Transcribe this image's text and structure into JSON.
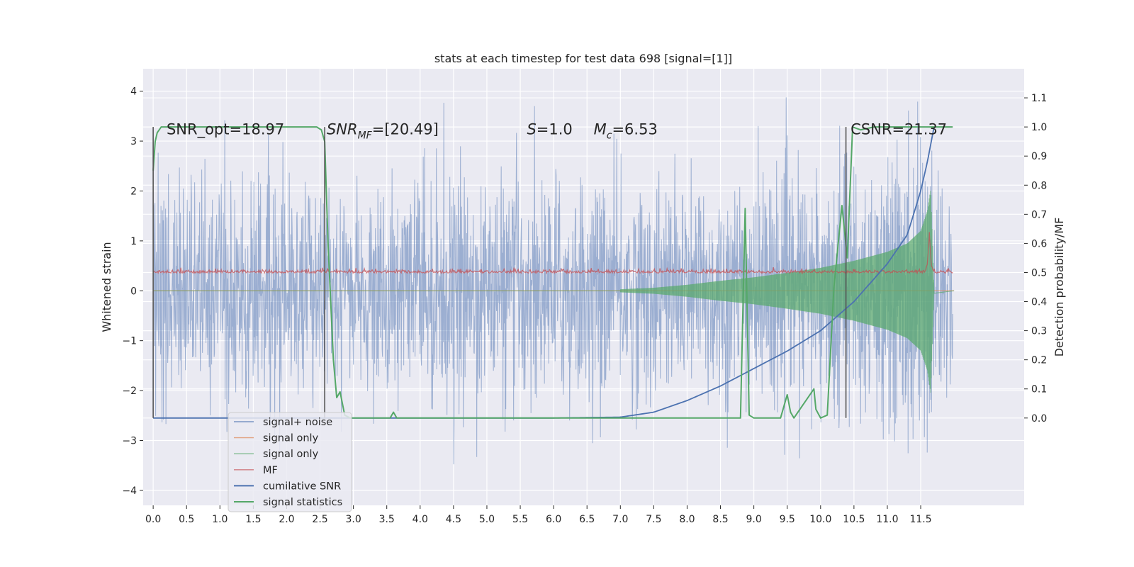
{
  "chart_data": {
    "type": "line",
    "title": "stats at each timestep for test data 698 [signal=[1]]",
    "ylabel": "Whitened strain",
    "ylabel_right": "Detection probability/MF",
    "xlim": [
      -0.15,
      13.05
    ],
    "ylim": [
      -4.3,
      4.45
    ],
    "ylim_right": [
      -0.3,
      1.2
    ],
    "x_ticks": [
      0.0,
      0.5,
      1.0,
      1.5,
      2.0,
      2.5,
      3.0,
      3.5,
      4.0,
      4.5,
      5.0,
      5.5,
      6.0,
      6.5,
      7.0,
      7.5,
      8.0,
      8.5,
      9.0,
      9.5,
      10.0,
      10.5,
      11.0,
      11.5
    ],
    "x_tick_labels": [
      "0.0",
      "0.5",
      "1.0",
      "1.5",
      "2.0",
      "2.5",
      "3.0",
      "3.5",
      "4.0",
      "4.5",
      "5.0",
      "5.5",
      "6.0",
      "6.5",
      "7.0",
      "7.5",
      "8.0",
      "8.5",
      "9.0",
      "9.5",
      "10.0",
      "10.5",
      "11.0",
      "11.5"
    ],
    "y_ticks": [
      -4,
      -3,
      -2,
      -1,
      0,
      1,
      2,
      3,
      4
    ],
    "y_tick_labels": [
      "−4",
      "−3",
      "−2",
      "−1",
      "0",
      "1",
      "2",
      "3",
      "4"
    ],
    "y_right_ticks": [
      0.0,
      0.1,
      0.2,
      0.3,
      0.4,
      0.5,
      0.6,
      0.7,
      0.8,
      0.9,
      1.0,
      1.1
    ],
    "y_right_tick_labels": [
      "0.0",
      "0.1",
      "0.2",
      "0.3",
      "0.4",
      "0.5",
      "0.6",
      "0.7",
      "0.8",
      "0.9",
      "1.0",
      "1.1"
    ],
    "grid": true,
    "annotations": [
      {
        "text": "SNR_opt=18.97",
        "x": 0.2,
        "y": 0.98
      },
      {
        "text": "SNR_MF=[20.49]",
        "x": 2.6,
        "y": 0.98
      },
      {
        "text": "S=1.0",
        "x": 5.6,
        "y": 0.98
      },
      {
        "text": "M_c=6.53",
        "x": 6.6,
        "y": 0.98
      },
      {
        "text": "CSNR=21.37",
        "x": 10.45,
        "y": 0.98
      }
    ],
    "vertical_lines": [
      0.0,
      2.57,
      10.38
    ],
    "series": [
      {
        "name": "signal+ noise",
        "color": "#4c72b0",
        "axis": "left",
        "style": "noise",
        "x_range": [
          0.0,
          11.98
        ],
        "band_sigma": 1.35,
        "approx_max": 4.1,
        "approx_min": -3.9
      },
      {
        "name": "signal only",
        "color": "#dd8452",
        "axis": "left",
        "x": [
          0.0,
          12.0
        ],
        "y": [
          0.0,
          0.0
        ]
      },
      {
        "name": "signal only",
        "color": "#55a868",
        "axis": "left",
        "style": "chirp",
        "x": [
          7.0,
          7.5,
          8.0,
          8.5,
          9.0,
          9.5,
          10.0,
          10.5,
          11.0,
          11.3,
          11.5,
          11.6,
          11.65,
          11.7
        ],
        "y": [
          0.03,
          0.06,
          0.12,
          0.2,
          0.27,
          0.36,
          0.46,
          0.6,
          0.78,
          0.95,
          1.2,
          1.6,
          2.05,
          0.05
        ]
      },
      {
        "name": "MF",
        "color": "#c44e52",
        "axis": "right",
        "style": "noisy",
        "x": [
          0.0,
          11.55,
          11.6,
          11.63,
          11.66,
          11.7,
          11.98
        ],
        "y": [
          0.5,
          0.5,
          0.52,
          0.63,
          0.52,
          0.5,
          0.5
        ]
      },
      {
        "name": "cumilative SNR",
        "color": "#4c72b0",
        "axis": "right",
        "x": [
          0.0,
          6.0,
          7.0,
          7.5,
          8.0,
          8.5,
          9.0,
          9.5,
          10.0,
          10.5,
          11.0,
          11.3,
          11.5,
          11.6,
          11.7
        ],
        "y": [
          0.0,
          0.0,
          0.003,
          0.02,
          0.06,
          0.11,
          0.17,
          0.23,
          0.3,
          0.4,
          0.53,
          0.63,
          0.78,
          0.88,
          1.0
        ]
      },
      {
        "name": "signal statistics",
        "color": "#55a868",
        "axis": "right",
        "x": [
          0.0,
          0.03,
          0.06,
          0.12,
          0.4,
          2.2,
          2.45,
          2.52,
          2.57,
          2.62,
          2.7,
          2.75,
          2.8,
          2.87,
          2.95,
          3.0,
          3.2,
          3.55,
          3.6,
          3.65,
          3.75,
          8.8,
          8.87,
          8.93,
          9.0,
          9.1,
          9.4,
          9.5,
          9.55,
          9.6,
          9.9,
          9.93,
          10.0,
          10.1,
          10.2,
          10.32,
          10.4,
          10.48,
          10.6,
          10.8,
          11.98
        ],
        "y": [
          0.85,
          0.95,
          0.98,
          1.0,
          1.0,
          1.0,
          1.0,
          0.99,
          0.95,
          0.6,
          0.2,
          0.07,
          0.09,
          0.01,
          0.0,
          0.0,
          0.0,
          0.0,
          0.02,
          0.0,
          0.0,
          0.0,
          0.72,
          0.01,
          0.0,
          0.0,
          0.0,
          0.08,
          0.02,
          0.0,
          0.1,
          0.03,
          0.0,
          0.01,
          0.45,
          0.73,
          0.55,
          1.0,
          0.99,
          1.0,
          1.0
        ]
      }
    ],
    "legend": {
      "position": "lower-left",
      "items": [
        {
          "label": "signal+ noise",
          "color": "#4c72b0"
        },
        {
          "label": "signal only",
          "color": "#dd8452"
        },
        {
          "label": "signal only",
          "color": "#55a868"
        },
        {
          "label": "MF",
          "color": "#c44e52"
        },
        {
          "label": "cumilative SNR",
          "color": "#4c72b0"
        },
        {
          "label": "signal statistics",
          "color": "#55a868"
        }
      ]
    }
  }
}
